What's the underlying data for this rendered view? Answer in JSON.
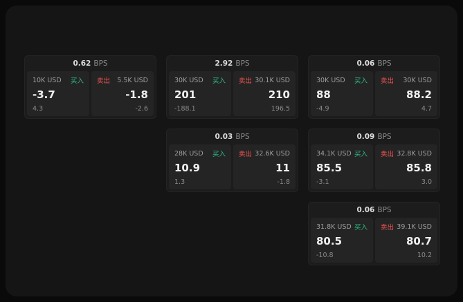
{
  "colors": {
    "buy_accent": "#2ebd85",
    "sell_accent": "#ef5350",
    "surface": "#151515",
    "card": "#1c1c1c",
    "panel": "#242424"
  },
  "labels": {
    "bps_unit": "BPS",
    "buy": "买入",
    "sell": "卖出"
  },
  "cards": [
    {
      "bps": "0.62",
      "buy": {
        "size": "10K USD",
        "price": "-3.7",
        "delta": "4.3"
      },
      "sell": {
        "size": "5.5K USD",
        "price": "-1.8",
        "delta": "-2.6"
      }
    },
    {
      "bps": "2.92",
      "buy": {
        "size": "30K USD",
        "price": "201",
        "delta": "-188.1"
      },
      "sell": {
        "size": "30.1K USD",
        "price": "210",
        "delta": "196.5"
      }
    },
    {
      "bps": "0.06",
      "buy": {
        "size": "30K USD",
        "price": "88",
        "delta": "-4.9"
      },
      "sell": {
        "size": "30K USD",
        "price": "88.2",
        "delta": "4.7"
      }
    },
    {
      "bps": "0.03",
      "buy": {
        "size": "28K USD",
        "price": "10.9",
        "delta": "1.3"
      },
      "sell": {
        "size": "32.6K USD",
        "price": "11",
        "delta": "-1.8"
      }
    },
    {
      "bps": "0.09",
      "buy": {
        "size": "34.1K USD",
        "price": "85.5",
        "delta": "-3.1"
      },
      "sell": {
        "size": "32.8K USD",
        "price": "85.8",
        "delta": "3.0"
      }
    },
    {
      "bps": "0.06",
      "buy": {
        "size": "31.8K USD",
        "price": "80.5",
        "delta": "-10.8"
      },
      "sell": {
        "size": "39.1K USD",
        "price": "80.7",
        "delta": "10.2"
      }
    }
  ]
}
